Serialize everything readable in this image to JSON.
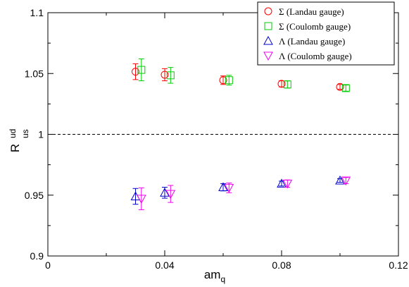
{
  "chart_data": {
    "type": "scatter",
    "xlabel": {
      "main": "am",
      "sub": "q"
    },
    "ylabel": {
      "main": "R",
      "sup": "ud",
      "sub": "us"
    },
    "xlim": [
      0,
      0.12
    ],
    "ylim": [
      0.9,
      1.1
    ],
    "xticks": [
      0,
      0.04,
      0.08,
      0.12
    ],
    "xtick_labels": [
      "0",
      "0.04",
      "0.08",
      "0.12"
    ],
    "yticks": [
      0.9,
      0.95,
      1,
      1.05,
      1.1
    ],
    "ytick_labels": [
      "0.9",
      "0.95",
      "1",
      "1.05",
      "1.1"
    ],
    "reference_line": {
      "y": 1,
      "style": "dashed",
      "color": "#000000"
    },
    "grid": false,
    "legend_position": "top-right",
    "series": [
      {
        "name": "Σ (Landau gauge)",
        "marker": "circle",
        "color": "#ff0000",
        "points": [
          {
            "x": 0.03,
            "y": 1.0515,
            "err": 0.0065
          },
          {
            "x": 0.04,
            "y": 1.049,
            "err": 0.005
          },
          {
            "x": 0.06,
            "y": 1.0445,
            "err": 0.0035
          },
          {
            "x": 0.08,
            "y": 1.0415,
            "err": 0.0025
          },
          {
            "x": 0.1,
            "y": 1.039,
            "err": 0.002
          }
        ]
      },
      {
        "name": "Σ (Coulomb gauge)",
        "marker": "square",
        "color": "#00cc00",
        "points": [
          {
            "x": 0.032,
            "y": 1.053,
            "err": 0.009
          },
          {
            "x": 0.042,
            "y": 1.0485,
            "err": 0.0065
          },
          {
            "x": 0.062,
            "y": 1.0445,
            "err": 0.004
          },
          {
            "x": 0.082,
            "y": 1.041,
            "err": 0.003
          },
          {
            "x": 0.102,
            "y": 1.038,
            "err": 0.0025
          }
        ]
      },
      {
        "name": "Λ (Landau gauge)",
        "marker": "triangle-up",
        "color": "#0000cc",
        "points": [
          {
            "x": 0.03,
            "y": 0.949,
            "err": 0.0065
          },
          {
            "x": 0.04,
            "y": 0.952,
            "err": 0.0045
          },
          {
            "x": 0.06,
            "y": 0.9565,
            "err": 0.003
          },
          {
            "x": 0.08,
            "y": 0.9595,
            "err": 0.002
          },
          {
            "x": 0.1,
            "y": 0.962,
            "err": 0.0015
          }
        ]
      },
      {
        "name": "Λ (Coulomb gauge)",
        "marker": "triangle-down",
        "color": "#ee00ee",
        "points": [
          {
            "x": 0.032,
            "y": 0.947,
            "err": 0.009
          },
          {
            "x": 0.042,
            "y": 0.951,
            "err": 0.007
          },
          {
            "x": 0.062,
            "y": 0.956,
            "err": 0.004
          },
          {
            "x": 0.082,
            "y": 0.9595,
            "err": 0.003
          },
          {
            "x": 0.102,
            "y": 0.962,
            "err": 0.0025
          }
        ]
      }
    ]
  }
}
